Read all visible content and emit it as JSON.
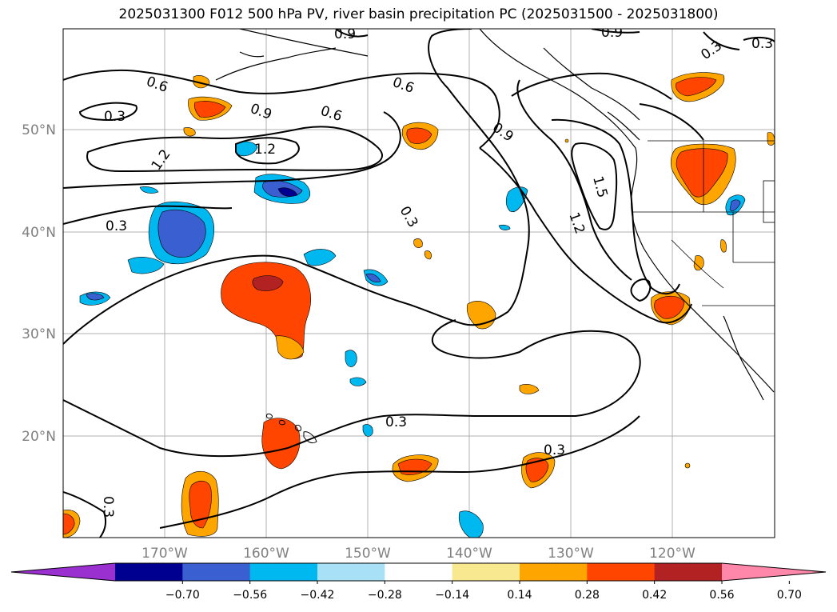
{
  "title": "2025031300 F012 500 hPa PV, river basin precipitation PC (2025031500 - 2025031800)",
  "map": {
    "lon_labels": [
      "170°W",
      "160°W",
      "150°W",
      "140°W",
      "130°W",
      "120°W"
    ],
    "lat_labels": [
      "50°N",
      "40°N",
      "30°N",
      "20°N"
    ],
    "contour_labels": [
      "0.3",
      "0.6",
      "0.9",
      "1.2",
      "1.5"
    ]
  },
  "colorbar": {
    "tick_labels": [
      "−0.70",
      "−0.56",
      "−0.42",
      "−0.28",
      "−0.14",
      "0.14",
      "0.28",
      "0.42",
      "0.56",
      "0.70"
    ],
    "colors": [
      "#9b30d0",
      "#000090",
      "#3a5fd0",
      "#00b8f0",
      "#a8e0f8",
      "#ffffff",
      "#f8e890",
      "#ffa500",
      "#ff4500",
      "#b22222",
      "#ff88aa"
    ]
  }
}
